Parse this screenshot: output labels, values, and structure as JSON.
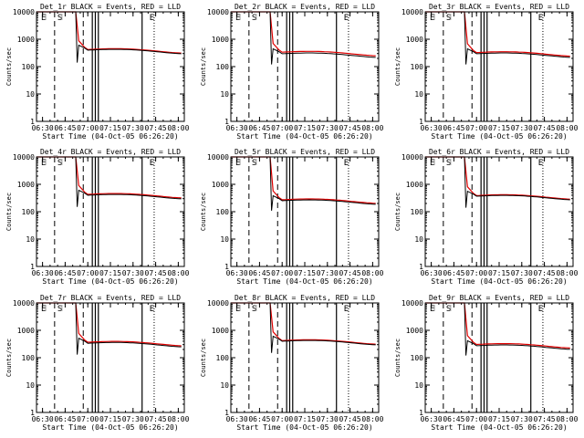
{
  "figure": {
    "xlabel": "Start Time (04-Oct-05 06:26:20)",
    "ylabel": "Counts/sec",
    "x_tick_labels": [
      "06:30",
      "06:45",
      "07:00",
      "07:15",
      "07:30",
      "07:45",
      "08:00"
    ],
    "y_tick_labels": [
      "1",
      "10",
      "100",
      "1000",
      "10000"
    ],
    "marker_labels": [
      "E",
      "S",
      "E"
    ]
  },
  "colors": {
    "events": "#000000",
    "lld": "#e00000",
    "axes": "#000000"
  },
  "chart_data": [
    {
      "type": "line",
      "title": "Det_1r BLACK = Events, RED = LLD",
      "xlabel": "Start Time (04-Oct-05 06:26:20)",
      "ylabel": "Counts/sec",
      "y_scale": "log",
      "ylim": [
        1,
        10000
      ],
      "xlim": [
        "06:26",
        "08:04"
      ],
      "x_ticks": [
        "06:30",
        "06:45",
        "07:00",
        "07:15",
        "07:30",
        "07:45",
        "08:00"
      ],
      "y_ticks": [
        1,
        10,
        100,
        1000,
        10000
      ],
      "events_level": 380,
      "lld_level": 400,
      "peak_clipped": true,
      "dip_level": 140,
      "marker_times": {
        "dashed": [
          "06:38",
          "06:57"
        ],
        "solid": [
          "07:03",
          "07:05",
          "07:07",
          "07:36"
        ],
        "dotted": [
          "07:44"
        ]
      }
    },
    {
      "type": "line",
      "title": "Det_2r BLACK = Events, RED = LLD",
      "xlabel": "Start Time (04-Oct-05 06:26:20)",
      "ylabel": "Counts/sec",
      "y_scale": "log",
      "ylim": [
        1,
        10000
      ],
      "xlim": [
        "06:26",
        "08:04"
      ],
      "x_ticks": [
        "06:30",
        "06:45",
        "07:00",
        "07:15",
        "07:30",
        "07:45",
        "08:00"
      ],
      "y_ticks": [
        1,
        10,
        100,
        1000,
        10000
      ],
      "events_level": 280,
      "lld_level": 320,
      "peak_clipped": true,
      "dip_level": 120,
      "marker_times": {
        "dashed": [
          "06:38",
          "06:57"
        ],
        "solid": [
          "07:03",
          "07:05",
          "07:07",
          "07:36"
        ],
        "dotted": [
          "07:44"
        ]
      }
    },
    {
      "type": "line",
      "title": "Det_3r BLACK = Events, RED = LLD",
      "xlabel": "Start Time (04-Oct-05 06:26:20)",
      "ylabel": "Counts/sec",
      "y_scale": "log",
      "ylim": [
        1,
        10000
      ],
      "xlim": [
        "06:26",
        "08:04"
      ],
      "x_ticks": [
        "06:30",
        "06:45",
        "07:00",
        "07:15",
        "07:30",
        "07:45",
        "08:00"
      ],
      "y_ticks": [
        1,
        10,
        100,
        1000,
        10000
      ],
      "events_level": 280,
      "lld_level": 310,
      "peak_clipped": true,
      "dip_level": 120,
      "marker_times": {
        "dashed": [
          "06:38",
          "06:57"
        ],
        "solid": [
          "07:03",
          "07:05",
          "07:07",
          "07:36"
        ],
        "dotted": [
          "07:44"
        ]
      }
    },
    {
      "type": "line",
      "title": "Det_4r BLACK = Events, RED = LLD",
      "xlabel": "Start Time (04-Oct-05 06:26:20)",
      "ylabel": "Counts/sec",
      "y_scale": "log",
      "ylim": [
        1,
        10000
      ],
      "xlim": [
        "06:26",
        "08:04"
      ],
      "x_ticks": [
        "06:30",
        "06:45",
        "07:00",
        "07:15",
        "07:30",
        "07:45",
        "08:00"
      ],
      "y_ticks": [
        1,
        10,
        100,
        1000,
        10000
      ],
      "events_level": 380,
      "lld_level": 410,
      "peak_clipped": true,
      "dip_level": 150,
      "marker_times": {
        "dashed": [
          "06:38",
          "06:57"
        ],
        "solid": [
          "07:03",
          "07:05",
          "07:07",
          "07:36"
        ],
        "dotted": [
          "07:44"
        ]
      }
    },
    {
      "type": "line",
      "title": "Det_5r BLACK = Events, RED = LLD",
      "xlabel": "Start Time (04-Oct-05 06:26:20)",
      "ylabel": "Counts/sec",
      "y_scale": "log",
      "ylim": [
        1,
        10000
      ],
      "xlim": [
        "06:26",
        "08:04"
      ],
      "x_ticks": [
        "06:30",
        "06:45",
        "07:00",
        "07:15",
        "07:30",
        "07:45",
        "08:00"
      ],
      "y_ticks": [
        1,
        10,
        100,
        1000,
        10000
      ],
      "events_level": 240,
      "lld_level": 260,
      "peak_clipped": true,
      "dip_level": 110,
      "marker_times": {
        "dashed": [
          "06:38",
          "06:57"
        ],
        "solid": [
          "07:03",
          "07:05",
          "07:07",
          "07:36"
        ],
        "dotted": [
          "07:44"
        ]
      }
    },
    {
      "type": "line",
      "title": "Det_6r BLACK = Events, RED = LLD",
      "xlabel": "Start Time (04-Oct-05 06:26:20)",
      "ylabel": "Counts/sec",
      "y_scale": "log",
      "ylim": [
        1,
        10000
      ],
      "xlim": [
        "06:26",
        "08:04"
      ],
      "x_ticks": [
        "06:30",
        "06:45",
        "07:00",
        "07:15",
        "07:30",
        "07:45",
        "08:00"
      ],
      "y_ticks": [
        1,
        10,
        100,
        1000,
        10000
      ],
      "events_level": 350,
      "lld_level": 370,
      "peak_clipped": true,
      "dip_level": 140,
      "marker_times": {
        "dashed": [
          "06:38",
          "06:57"
        ],
        "solid": [
          "07:03",
          "07:05",
          "07:07",
          "07:36"
        ],
        "dotted": [
          "07:44"
        ]
      }
    },
    {
      "type": "line",
      "title": "Det_7r BLACK = Events, RED = LLD",
      "xlabel": "Start Time (04-Oct-05 06:26:20)",
      "ylabel": "Counts/sec",
      "y_scale": "log",
      "ylim": [
        1,
        10000
      ],
      "xlim": [
        "06:26",
        "08:04"
      ],
      "x_ticks": [
        "06:30",
        "06:45",
        "07:00",
        "07:15",
        "07:30",
        "07:45",
        "08:00"
      ],
      "y_ticks": [
        1,
        10,
        100,
        1000,
        10000
      ],
      "events_level": 320,
      "lld_level": 350,
      "peak_clipped": true,
      "dip_level": 130,
      "marker_times": {
        "dashed": [
          "06:38",
          "06:57"
        ],
        "solid": [
          "07:03",
          "07:05",
          "07:07",
          "07:36"
        ],
        "dotted": [
          "07:44"
        ]
      }
    },
    {
      "type": "line",
      "title": "Det_8r BLACK = Events, RED = LLD",
      "xlabel": "Start Time (04-Oct-05 06:26:20)",
      "ylabel": "Counts/sec",
      "y_scale": "log",
      "ylim": [
        1,
        10000
      ],
      "xlim": [
        "06:26",
        "08:04"
      ],
      "x_ticks": [
        "06:30",
        "06:45",
        "07:00",
        "07:15",
        "07:30",
        "07:45",
        "08:00"
      ],
      "y_ticks": [
        1,
        10,
        100,
        1000,
        10000
      ],
      "events_level": 380,
      "lld_level": 400,
      "peak_clipped": true,
      "dip_level": 150,
      "marker_times": {
        "dashed": [
          "06:38",
          "06:57"
        ],
        "solid": [
          "07:03",
          "07:05",
          "07:07",
          "07:36"
        ],
        "dotted": [
          "07:44"
        ]
      }
    },
    {
      "type": "line",
      "title": "Det_9r BLACK = Events, RED = LLD",
      "xlabel": "Start Time (04-Oct-05 06:26:20)",
      "ylabel": "Counts/sec",
      "y_scale": "log",
      "ylim": [
        1,
        10000
      ],
      "xlim": [
        "06:26",
        "08:04"
      ],
      "x_ticks": [
        "06:30",
        "06:45",
        "07:00",
        "07:15",
        "07:30",
        "07:45",
        "08:00"
      ],
      "y_ticks": [
        1,
        10,
        100,
        1000,
        10000
      ],
      "events_level": 260,
      "lld_level": 290,
      "peak_clipped": true,
      "dip_level": 120,
      "marker_times": {
        "dashed": [
          "06:38",
          "06:57"
        ],
        "solid": [
          "07:03",
          "07:05",
          "07:07",
          "07:36"
        ],
        "dotted": [
          "07:44"
        ]
      }
    }
  ]
}
